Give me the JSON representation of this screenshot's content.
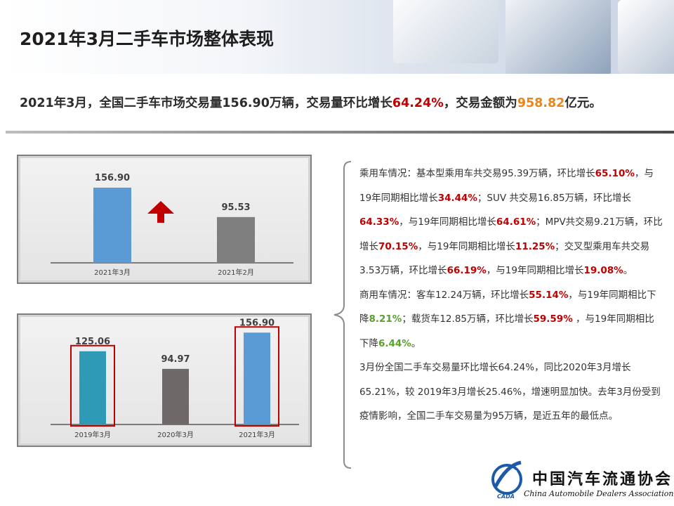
{
  "header": {
    "title": "2021年3月二手车市场整体表现"
  },
  "summary": {
    "prefix": "2021年3月，全国二手车市场交易量156.90万辆，交易量环比增长",
    "mom_growth": "64.24%",
    "middle": "，交易金额为",
    "amount": "958.82",
    "suffix": "亿元。"
  },
  "colors": {
    "accent_red": "#c00000",
    "accent_orange": "#e8861a",
    "accent_green": "#5aa02c",
    "bar_blue": "#5b9bd5",
    "bar_gray": "#7f7f7f",
    "bar_teal": "#2e9ab6",
    "bar_darkgray": "#6e6869",
    "arrow_red": "#c00000"
  },
  "chart_data": [
    {
      "type": "bar",
      "categories": [
        "2021年3月",
        "2021年2月"
      ],
      "values": [
        156.9,
        95.53
      ],
      "value_labels": [
        "156.90",
        "95.53"
      ],
      "indicator": "up-arrow"
    },
    {
      "type": "bar",
      "categories": [
        "2019年3月",
        "2020年3月",
        "2021年3月"
      ],
      "values": [
        125.06,
        94.97,
        156.9
      ],
      "value_labels": [
        "125.06",
        "94.97",
        "156.90"
      ],
      "highlighted": [
        "2019年3月",
        "2021年3月"
      ]
    }
  ],
  "details": {
    "passenger": [
      {
        "t": "乘用车情况：基本型乘用车共交易95.39万辆，环比增长",
        "c": ""
      },
      {
        "t": "65.10%",
        "c": "red"
      },
      {
        "t": "，与19年同期相比增长",
        "c": ""
      },
      {
        "t": "34.44%",
        "c": "red"
      },
      {
        "t": "；SUV 共交易16.85万辆，环比增长",
        "c": ""
      },
      {
        "t": "64.33%",
        "c": "red"
      },
      {
        "t": "，与19年同期相比增长",
        "c": ""
      },
      {
        "t": "64.61%",
        "c": "red"
      },
      {
        "t": "；MPV共交易9.21万辆，环比增长",
        "c": ""
      },
      {
        "t": "70.15%",
        "c": "red"
      },
      {
        "t": "，与19年同期相比增长",
        "c": ""
      },
      {
        "t": "11.25%",
        "c": "red"
      },
      {
        "t": "；交叉型乘用车共交易3.53万辆，环比增长",
        "c": ""
      },
      {
        "t": "66.19%",
        "c": "red"
      },
      {
        "t": "，与19年同期相比增长",
        "c": ""
      },
      {
        "t": "19.08%",
        "c": "red"
      },
      {
        "t": "。",
        "c": ""
      }
    ],
    "commercial": [
      {
        "t": "商用车情况：客车12.24万辆，环比增长",
        "c": ""
      },
      {
        "t": "55.14%",
        "c": "red"
      },
      {
        "t": "，与19年同期相比下降",
        "c": ""
      },
      {
        "t": "8.21%",
        "c": "green"
      },
      {
        "t": "；载货车12.85万辆，环比增长",
        "c": ""
      },
      {
        "t": "59.59%",
        "c": "red"
      },
      {
        "t": " ，与19年同期相比下降",
        "c": ""
      },
      {
        "t": "6.44%",
        "c": "green"
      },
      {
        "t": "。",
        "c": ""
      }
    ],
    "overall": "3月份全国二手车交易量环比增长64.24%，同比2020年3月增长65.21%，较 2019年3月增长25.46%，增速明显加快。去年3月份受到疫情影响，全国二手车交易量为95万辆，是近五年的最低点。"
  },
  "logo": {
    "name_cn": "中国汽车流通协会",
    "name_en": "China Automobile Dealers Association",
    "abbr": "CADA"
  }
}
